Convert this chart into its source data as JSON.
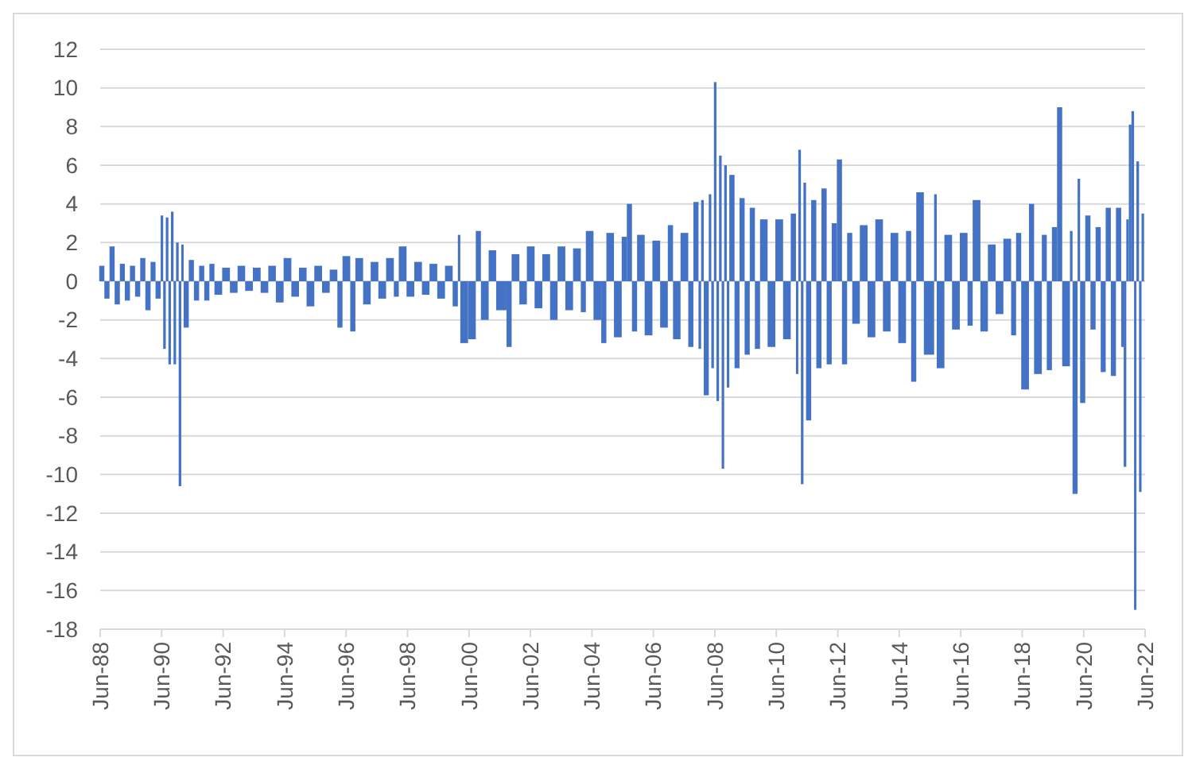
{
  "chart_data": {
    "type": "bar",
    "color": "#4472c4",
    "grid": "y",
    "ylim": [
      -18,
      12
    ],
    "yticks": [
      -18,
      -16,
      -14,
      -12,
      -10,
      -8,
      -6,
      -4,
      -2,
      0,
      2,
      4,
      6,
      8,
      10,
      12
    ],
    "xlim": [
      "1988-06",
      "2022-06"
    ],
    "xticks": [
      {
        "value": "1988-06",
        "label": "Jun-88"
      },
      {
        "value": "1990-06",
        "label": "Jun-90"
      },
      {
        "value": "1992-06",
        "label": "Jun-92"
      },
      {
        "value": "1994-06",
        "label": "Jun-94"
      },
      {
        "value": "1996-06",
        "label": "Jun-96"
      },
      {
        "value": "1998-06",
        "label": "Jun-98"
      },
      {
        "value": "2000-06",
        "label": "Jun-00"
      },
      {
        "value": "2002-06",
        "label": "Jun-02"
      },
      {
        "value": "2004-06",
        "label": "Jun-04"
      },
      {
        "value": "2006-06",
        "label": "Jun-06"
      },
      {
        "value": "2008-06",
        "label": "Jun-08"
      },
      {
        "value": "2010-06",
        "label": "Jun-10"
      },
      {
        "value": "2012-06",
        "label": "Jun-12"
      },
      {
        "value": "2014-06",
        "label": "Jun-14"
      },
      {
        "value": "2016-06",
        "label": "Jun-16"
      },
      {
        "value": "2018-06",
        "label": "Jun-18"
      },
      {
        "value": "2020-06",
        "label": "Jun-20"
      },
      {
        "value": "2022-06",
        "label": "Jun-22"
      }
    ],
    "x": [
      "1988-06",
      "1988-08",
      "1988-10",
      "1988-12",
      "1989-02",
      "1989-04",
      "1989-06",
      "1989-08",
      "1989-10",
      "1989-12",
      "1990-02",
      "1990-04",
      "1990-06",
      "1990-07",
      "1990-08",
      "1990-09",
      "1990-10",
      "1990-11",
      "1990-12",
      "1991-01",
      "1991-02",
      "1991-03",
      "1991-05",
      "1991-07",
      "1991-09",
      "1991-11",
      "1992-01",
      "1992-03",
      "1992-06",
      "1992-09",
      "1992-12",
      "1993-03",
      "1993-06",
      "1993-09",
      "1993-12",
      "1994-03",
      "1994-06",
      "1994-09",
      "1994-12",
      "1995-03",
      "1995-06",
      "1995-09",
      "1995-12",
      "1996-03",
      "1996-05",
      "1996-08",
      "1996-10",
      "1997-01",
      "1997-04",
      "1997-07",
      "1997-10",
      "1998-01",
      "1998-03",
      "1998-06",
      "1998-09",
      "1998-12",
      "1999-03",
      "1999-06",
      "1999-09",
      "1999-12",
      "2000-02",
      "2000-03",
      "2000-06",
      "2000-09",
      "2000-11",
      "2001-02",
      "2001-05",
      "2001-09",
      "2001-11",
      "2002-02",
      "2002-05",
      "2002-08",
      "2002-11",
      "2003-02",
      "2003-05",
      "2003-08",
      "2003-11",
      "2004-02",
      "2004-04",
      "2004-07",
      "2004-10",
      "2004-12",
      "2005-03",
      "2005-06",
      "2005-08",
      "2005-10",
      "2005-12",
      "2006-03",
      "2006-06",
      "2006-09",
      "2006-12",
      "2007-02",
      "2007-05",
      "2007-08",
      "2007-10",
      "2007-12",
      "2008-01",
      "2008-02",
      "2008-04",
      "2008-05",
      "2008-06",
      "2008-07",
      "2008-08",
      "2008-09",
      "2008-10",
      "2008-11",
      "2008-12",
      "2009-02",
      "2009-04",
      "2009-06",
      "2009-08",
      "2009-10",
      "2009-12",
      "2010-03",
      "2010-06",
      "2010-09",
      "2010-12",
      "2011-02",
      "2011-03",
      "2011-04",
      "2011-05",
      "2011-06",
      "2011-08",
      "2011-10",
      "2011-12",
      "2012-02",
      "2012-04",
      "2012-06",
      "2012-08",
      "2012-10",
      "2012-12",
      "2013-03",
      "2013-06",
      "2013-09",
      "2013-12",
      "2014-03",
      "2014-06",
      "2014-09",
      "2014-11",
      "2015-01",
      "2015-04",
      "2015-08",
      "2015-09",
      "2015-12",
      "2016-03",
      "2016-06",
      "2016-09",
      "2016-11",
      "2017-02",
      "2017-05",
      "2017-08",
      "2017-11",
      "2018-02",
      "2018-04",
      "2018-06",
      "2018-09",
      "2018-11",
      "2019-02",
      "2019-04",
      "2019-06",
      "2019-08",
      "2019-10",
      "2020-01",
      "2020-02",
      "2020-04",
      "2020-05",
      "2020-07",
      "2020-09",
      "2020-11",
      "2021-01",
      "2021-03",
      "2021-05",
      "2021-07",
      "2021-09",
      "2021-10",
      "2021-11",
      "2021-12",
      "2022-01",
      "2022-02",
      "2022-03",
      "2022-04",
      "2022-05"
    ],
    "values": [
      0.8,
      -0.9,
      1.8,
      -1.2,
      0.9,
      -1.0,
      0.8,
      -0.8,
      1.2,
      -1.5,
      1.0,
      -0.9,
      3.4,
      -3.5,
      3.3,
      -4.3,
      3.6,
      -4.3,
      2.0,
      -10.6,
      1.9,
      -2.4,
      1.1,
      -1.0,
      0.8,
      -1.0,
      0.9,
      -0.7,
      0.7,
      -0.6,
      0.8,
      -0.5,
      0.7,
      -0.6,
      0.8,
      -1.1,
      1.2,
      -0.8,
      0.7,
      -1.3,
      0.8,
      -0.6,
      0.6,
      -2.4,
      1.3,
      -2.6,
      1.2,
      -1.2,
      1.0,
      -0.9,
      1.2,
      -0.8,
      1.8,
      -0.8,
      1.0,
      -0.7,
      0.9,
      -0.9,
      0.8,
      -1.3,
      2.4,
      -3.2,
      -3.0,
      2.6,
      -2.0,
      1.6,
      -1.5,
      -3.4,
      1.4,
      -1.2,
      1.8,
      -1.4,
      1.4,
      -2.0,
      1.8,
      -1.5,
      1.7,
      -1.6,
      2.6,
      -2.0,
      -3.2,
      2.5,
      -2.9,
      2.3,
      4.0,
      -2.6,
      2.4,
      -2.8,
      2.1,
      -2.4,
      2.9,
      -3.0,
      2.5,
      -3.4,
      4.1,
      -3.5,
      4.2,
      -5.9,
      4.5,
      -4.5,
      10.3,
      -6.2,
      6.5,
      -9.7,
      6.0,
      -5.5,
      5.5,
      -4.5,
      4.3,
      -3.8,
      3.8,
      -3.5,
      3.2,
      -3.4,
      3.2,
      -3.0,
      3.5,
      -4.8,
      6.8,
      -10.5,
      5.1,
      -7.2,
      4.2,
      -4.5,
      4.8,
      -4.3,
      3.0,
      6.3,
      -4.3,
      2.5,
      -2.2,
      2.9,
      -2.9,
      3.2,
      -2.6,
      2.5,
      -3.2,
      2.6,
      -5.2,
      4.6,
      -3.8,
      4.5,
      -4.5,
      2.4,
      -2.5,
      2.5,
      -2.3,
      4.2,
      -2.6,
      1.9,
      -1.7,
      2.2,
      -2.8,
      2.5,
      -5.6,
      4.0,
      -4.8,
      2.4,
      -4.6,
      2.8,
      9.0,
      -4.4,
      2.6,
      -11.0,
      5.3,
      -6.3,
      3.4,
      -2.5,
      2.8,
      -4.7,
      3.8,
      -4.9,
      3.8,
      -3.4,
      -9.6,
      3.2,
      8.1,
      8.8,
      -17.0,
      6.2,
      -10.9,
      3.5
    ]
  }
}
